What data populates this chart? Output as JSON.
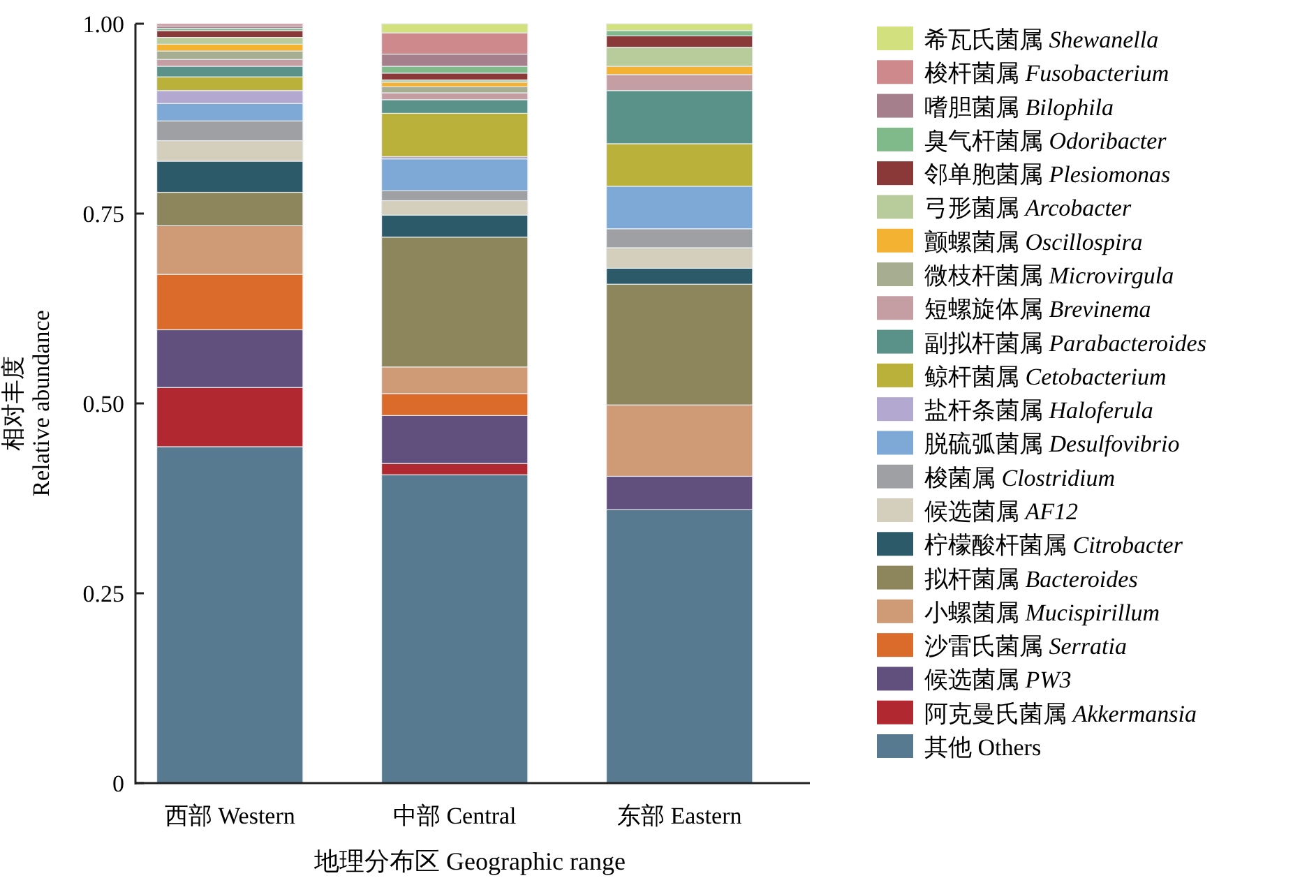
{
  "chart_data": {
    "type": "bar",
    "stacked": true,
    "xlabel": "地理分布区 Geographic range",
    "ylabel": "相对丰度\nRelative abundance",
    "categories": [
      "西部 Western",
      "中部 Central",
      "东部 Eastern"
    ],
    "ylim": [
      0,
      1
    ],
    "yticks": [
      0,
      0.25,
      {
        "value": 0.5,
        "label": "0.50"
      },
      0.75,
      {
        "value": 1,
        "label": "1.00"
      }
    ],
    "legend": "right",
    "grid": false,
    "series": [
      {
        "name": "其他 Others",
        "color": "#577a91",
        "values": [
          0.443,
          0.406,
          0.36
        ]
      },
      {
        "name": "阿克曼氏菌属 Akkermansia",
        "color": "#b22830",
        "values": [
          0.078,
          0.015,
          0
        ]
      },
      {
        "name": "候选菌属 PW3",
        "color": "#614f7d",
        "values": [
          0.076,
          0.063,
          0.044
        ]
      },
      {
        "name": "沙雷氏菌属 Serratia",
        "color": "#db6b2b",
        "values": [
          0.073,
          0.029,
          0
        ]
      },
      {
        "name": "小螺菌属 Mucispirillum",
        "color": "#cf9b76",
        "values": [
          0.064,
          0.035,
          0.094
        ]
      },
      {
        "name": "拟杆菌属 Bacteroides",
        "color": "#8d855c",
        "values": [
          0.044,
          0.171,
          0.159
        ]
      },
      {
        "name": "柠檬酸杆菌属 Citrobacter",
        "color": "#2d5a69",
        "values": [
          0.041,
          0.029,
          0.021
        ]
      },
      {
        "name": "候选菌属 AF12",
        "color": "#d4cfbd",
        "values": [
          0.027,
          0.019,
          0.027
        ]
      },
      {
        "name": "梭菌属 Clostridium",
        "color": "#9fa0a3",
        "values": [
          0.026,
          0.013,
          0.025
        ]
      },
      {
        "name": "脱硫弧菌属 Desulfovibrio",
        "color": "#7ea8d6",
        "values": [
          0.023,
          0.042,
          0.056
        ]
      },
      {
        "name": "盐杆条菌属 Haloferula",
        "color": "#b3a8d0",
        "values": [
          0.017,
          0.003,
          0
        ]
      },
      {
        "name": "鲸杆菌属 Cetobacterium",
        "color": "#bab13a",
        "values": [
          0.018,
          0.057,
          0.056
        ]
      },
      {
        "name": "副拟杆菌属 Parabacteroides",
        "color": "#5a9289",
        "values": [
          0.014,
          0.018,
          0.07
        ]
      },
      {
        "name": "短螺旋体属 Brevinema",
        "color": "#c59ea4",
        "values": [
          0.009,
          0.009,
          0.021
        ]
      },
      {
        "name": "微枝杆菌属 Microvirgula",
        "color": "#a7ad90",
        "values": [
          0.011,
          0.008,
          0
        ]
      },
      {
        "name": "颤螺菌属 Oscillospira",
        "color": "#f4b233",
        "values": [
          0.009,
          0.006,
          0.011
        ]
      },
      {
        "name": "弓形菌属 Arcobacter",
        "color": "#b8cc9b",
        "values": [
          0.009,
          0.003,
          0.025
        ]
      },
      {
        "name": "邻单胞菌属 Plesiomonas",
        "color": "#8b3838",
        "values": [
          0.009,
          0.009,
          0.015
        ]
      },
      {
        "name": "臭气杆菌属 Odoribacter",
        "color": "#80b98a",
        "values": [
          0.003,
          0.009,
          0.007
        ]
      },
      {
        "name": "嗜胆菌属 Bilophila",
        "color": "#a57f8b",
        "values": [
          0.003,
          0.016,
          0
        ]
      },
      {
        "name": "梭杆菌属 Fusobacterium",
        "color": "#cd898b",
        "values": [
          0.003,
          0.028,
          0
        ]
      },
      {
        "name": "希瓦氏菌属 Shewanella",
        "color": "#d3e07e",
        "values": [
          0,
          0.012,
          0.009
        ]
      }
    ]
  }
}
